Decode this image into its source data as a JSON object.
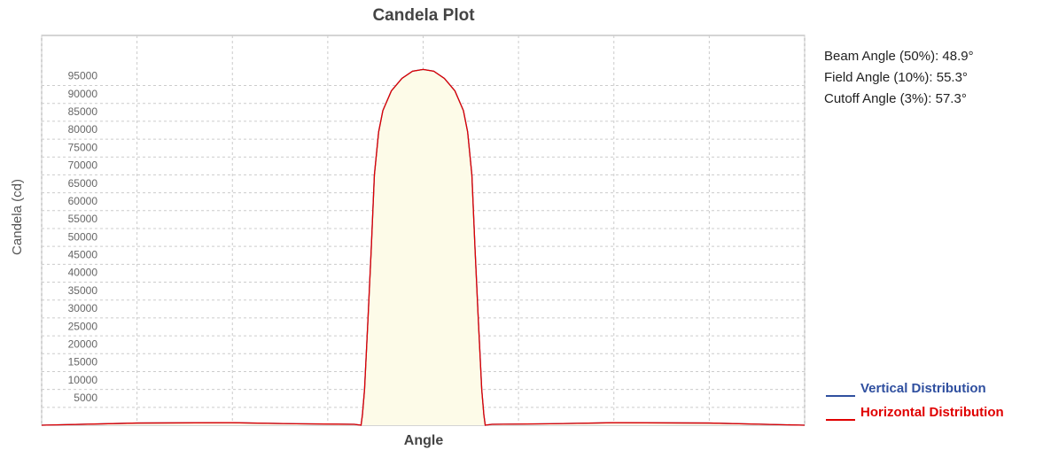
{
  "chart_data": {
    "type": "line",
    "title": "Candela Plot",
    "x_label": "Angle",
    "y_label": "Candela (cd)",
    "annotations": [
      "Beam Angle (50%): 48.9°",
      "Field Angle (10%): 55.3°",
      "Cutoff Angle (3%): 57.3°"
    ],
    "x": [
      -180,
      -135,
      -90,
      -60,
      -32.4,
      -29.3,
      -28.65,
      -27.65,
      -26,
      -24.45,
      -23,
      -21,
      -19,
      -15,
      -10,
      -5,
      0,
      5,
      10,
      15,
      19,
      21,
      23,
      24.45,
      26,
      27.65,
      28.65,
      29.3,
      32.4,
      60,
      90,
      135,
      180
    ],
    "series": [
      {
        "name": "Vertical Distribution",
        "color": "#2f4f9f",
        "values": [
          0,
          600,
          700,
          400,
          250,
          0,
          2900,
          9950,
          30000,
          49750,
          70000,
          82000,
          88000,
          93500,
          97000,
          99000,
          99500,
          99000,
          97000,
          93500,
          88000,
          82000,
          70000,
          49750,
          30000,
          9950,
          2900,
          0,
          250,
          400,
          700,
          600,
          0
        ]
      },
      {
        "name": "Horizontal Distribution",
        "color": "#e00000",
        "fill": "#fdfbe8",
        "values": [
          0,
          600,
          700,
          400,
          250,
          0,
          2900,
          9950,
          30000,
          49750,
          70000,
          82000,
          88000,
          93500,
          97000,
          99000,
          99500,
          99000,
          97000,
          93500,
          88000,
          82000,
          70000,
          49750,
          30000,
          9950,
          2900,
          0,
          250,
          400,
          700,
          600,
          0
        ]
      }
    ],
    "xlim": [
      -180,
      180
    ],
    "xticks": [
      -180,
      -135,
      -90,
      -45,
      0,
      45,
      90,
      135,
      180
    ],
    "ylim": [
      0,
      109000
    ],
    "yticks": [
      5000,
      10000,
      15000,
      20000,
      25000,
      30000,
      35000,
      40000,
      45000,
      50000,
      55000,
      60000,
      65000,
      70000,
      75000,
      80000,
      85000,
      90000,
      95000
    ],
    "grid": true
  }
}
